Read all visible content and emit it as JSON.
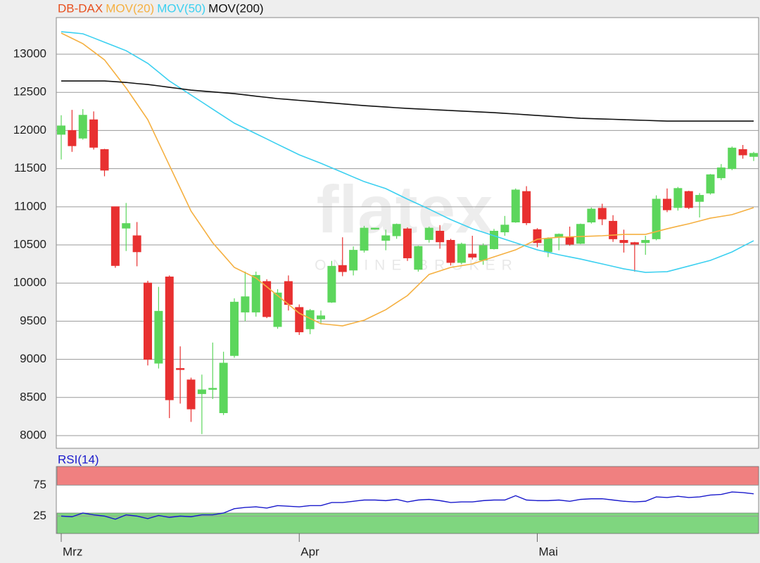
{
  "chart_data": [
    {
      "type": "candlestick",
      "name": "DB-DAX",
      "name_color": "#e8501e",
      "watermark": "flatex",
      "watermark_sub": "ONLINE BROKER",
      "up_color": "#5cd65c",
      "down_color": "#e83030",
      "categories": [
        "Mrz",
        null,
        null,
        null,
        null,
        null,
        null,
        null,
        null,
        null,
        null,
        null,
        null,
        null,
        null,
        null,
        null,
        null,
        null,
        null,
        null,
        null,
        "Apr",
        null,
        null,
        null,
        null,
        null,
        null,
        null,
        null,
        null,
        null,
        null,
        null,
        null,
        null,
        null,
        null,
        null,
        null,
        null,
        null,
        null,
        "Mai",
        null,
        null,
        null,
        null,
        null,
        null,
        null,
        null,
        null,
        null,
        null,
        null,
        null,
        null,
        null,
        null,
        null,
        null,
        null,
        null
      ],
      "open": [
        11950,
        12000,
        11900,
        12140,
        11750,
        11000,
        10720,
        10620,
        10000,
        8950,
        10080,
        8880,
        8730,
        8550,
        8610,
        8300,
        9050,
        9620,
        9620,
        10020,
        9430,
        10020,
        9680,
        9400,
        9530,
        9750,
        10230,
        10170,
        10430,
        10710,
        10560,
        10620,
        10710,
        10180,
        10570,
        10680,
        10560,
        10270,
        10380,
        10300,
        10450,
        10670,
        10800,
        11200,
        10700,
        10410,
        10600,
        10600,
        10520,
        10800,
        10980,
        10810,
        10560,
        10530,
        10530,
        10580,
        11100,
        10990,
        11200,
        11070,
        11180,
        11380,
        11500,
        11750,
        11660
      ],
      "high": [
        12200,
        12270,
        12280,
        12250,
        11760,
        11000,
        11050,
        10800,
        10030,
        9950,
        10100,
        9170,
        8760,
        8800,
        9220,
        9100,
        9800,
        10150,
        10150,
        10050,
        9920,
        10100,
        9720,
        9660,
        9640,
        10290,
        10600,
        10480,
        10750,
        10720,
        10700,
        10780,
        10730,
        10490,
        10740,
        10760,
        10580,
        10530,
        10620,
        10520,
        10710,
        10880,
        11240,
        11270,
        10720,
        10600,
        10650,
        10740,
        10780,
        10990,
        11040,
        10890,
        10700,
        10540,
        10620,
        11150,
        11240,
        11260,
        11210,
        11180,
        11430,
        11560,
        11790,
        11810,
        11720
      ],
      "low": [
        11620,
        11720,
        11880,
        11750,
        11400,
        10200,
        10420,
        10220,
        8920,
        8880,
        8230,
        8420,
        8180,
        8020,
        8480,
        8270,
        9020,
        9500,
        9560,
        9540,
        9400,
        9640,
        9320,
        9330,
        9460,
        9740,
        10090,
        10100,
        10400,
        10700,
        10430,
        10580,
        10290,
        10150,
        10530,
        10450,
        10230,
        10250,
        10310,
        10240,
        10440,
        10620,
        10790,
        10760,
        10470,
        10340,
        10430,
        10490,
        10510,
        10780,
        10760,
        10540,
        10400,
        10150,
        10370,
        10560,
        10930,
        10950,
        10970,
        10860,
        11160,
        11350,
        11480,
        11630,
        11600
      ],
      "close": [
        12060,
        11800,
        12200,
        11780,
        11480,
        10230,
        10780,
        10410,
        9000,
        9630,
        8470,
        8870,
        8350,
        8600,
        8620,
        8950,
        9750,
        9820,
        10100,
        9560,
        9870,
        9720,
        9360,
        9640,
        9570,
        10220,
        10150,
        10430,
        10720,
        10720,
        10620,
        10770,
        10330,
        10480,
        10720,
        10540,
        10270,
        10510,
        10340,
        10490,
        10680,
        10760,
        11220,
        10790,
        10530,
        10580,
        10640,
        10510,
        10770,
        10970,
        10840,
        10580,
        10530,
        10510,
        10560,
        11100,
        10960,
        11240,
        10990,
        11150,
        11420,
        11510,
        11770,
        11680,
        11700
      ],
      "series": [
        {
          "name": "MOV(20)",
          "color": "#f5b041",
          "values": [
            13277,
            13208,
            13138,
            13032,
            12926,
            12742,
            12557,
            12350,
            12142,
            11842,
            11542,
            11243,
            10943,
            10736,
            10528,
            10367,
            10205,
            10136,
            10066,
            9951,
            9836,
            9721,
            9605,
            9536,
            9467,
            9453,
            9439,
            9476,
            9513,
            9582,
            9651,
            9744,
            9836,
            9975,
            10113,
            10159,
            10205,
            10228,
            10251,
            10297,
            10343,
            10389,
            10435,
            10505,
            10574,
            10588,
            10601,
            10606,
            10610,
            10615,
            10620,
            10629,
            10638,
            10638,
            10638,
            10675,
            10712,
            10745,
            10777,
            10814,
            10851,
            10874,
            10897,
            10943,
            10989
          ]
        },
        {
          "name": "MOV(50)",
          "color": "#3cd0f0",
          "values": [
            13295,
            13282,
            13268,
            13213,
            13157,
            13102,
            13046,
            12963,
            12880,
            12765,
            12649,
            12557,
            12465,
            12373,
            12280,
            12188,
            12096,
            12027,
            11958,
            11889,
            11819,
            11750,
            11681,
            11626,
            11570,
            11510,
            11450,
            11390,
            11330,
            11284,
            11238,
            11169,
            11100,
            11035,
            10970,
            10901,
            10832,
            10772,
            10712,
            10666,
            10620,
            10574,
            10528,
            10482,
            10435,
            10403,
            10371,
            10343,
            10315,
            10283,
            10251,
            10219,
            10186,
            10163,
            10140,
            10145,
            10149,
            10186,
            10223,
            10260,
            10297,
            10353,
            10408,
            10482,
            10555
          ]
        },
        {
          "name": "MOV(200)",
          "color": "#111111",
          "values": [
            12649,
            12649,
            12649,
            12649,
            12649,
            12640,
            12630,
            12615,
            12603,
            12585,
            12566,
            12548,
            12529,
            12518,
            12506,
            12495,
            12483,
            12467,
            12450,
            12434,
            12418,
            12407,
            12395,
            12384,
            12372,
            12361,
            12349,
            12338,
            12326,
            12317,
            12308,
            12298,
            12289,
            12282,
            12276,
            12269,
            12262,
            12255,
            12248,
            12241,
            12234,
            12225,
            12216,
            12206,
            12197,
            12188,
            12179,
            12169,
            12160,
            12156,
            12151,
            12147,
            12142,
            12137,
            12133,
            12128,
            12123,
            12123,
            12123,
            12123,
            12123,
            12123,
            12123,
            12123,
            12123
          ]
        }
      ],
      "ylim": [
        7834,
        13480
      ],
      "yticks": [
        8000,
        8500,
        9000,
        9500,
        10000,
        10500,
        11000,
        11500,
        12000,
        12500,
        13000
      ],
      "grid": true
    },
    {
      "type": "line",
      "series": [
        {
          "name": "RSI(14)",
          "color": "#1a1acc",
          "values": [
            25,
            24,
            30,
            27,
            25,
            20,
            27,
            25,
            21,
            26,
            23,
            25,
            24,
            27,
            27,
            30,
            37,
            39,
            40,
            38,
            42,
            41,
            40,
            42,
            42,
            47,
            47,
            49,
            51,
            51,
            50,
            52,
            48,
            51,
            52,
            50,
            47,
            48,
            48,
            50,
            51,
            51,
            58,
            51,
            50,
            50,
            51,
            49,
            52,
            53,
            53,
            51,
            49,
            48,
            49,
            56,
            55,
            57,
            55,
            56,
            59,
            60,
            64,
            63,
            61
          ]
        }
      ],
      "bands": [
        {
          "range": [
            75,
            105
          ],
          "color": "#f08080"
        },
        {
          "range": [
            -3,
            30
          ],
          "color": "#7fd67f"
        }
      ],
      "ylim": [
        -3,
        105
      ],
      "yticks": [
        25,
        75
      ],
      "grid": true
    }
  ]
}
